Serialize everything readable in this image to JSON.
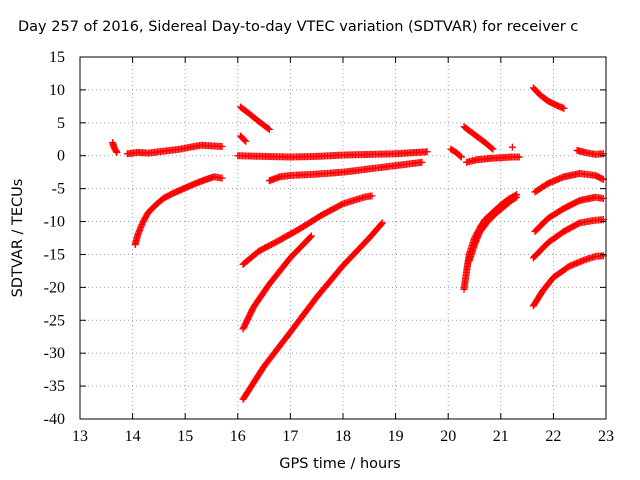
{
  "chart_data": {
    "type": "scatter",
    "title": "Day 257 of 2016, Sidereal Day-to-day VTEC variation (SDTVAR) for receiver c",
    "xlabel": "GPS time / hours",
    "ylabel": "SDTVAR / TECUs",
    "xlim": [
      13,
      23
    ],
    "ylim": [
      -40,
      15
    ],
    "x_ticks": [
      "13",
      "14",
      "15",
      "16",
      "17",
      "18",
      "19",
      "20",
      "21",
      "22",
      "23"
    ],
    "y_ticks": [
      "15",
      "10",
      "5",
      "0",
      "-5",
      "-10",
      "-15",
      "-20",
      "-25",
      "-30",
      "-35",
      "-40"
    ],
    "grid": true,
    "marker": "plus",
    "color": "#ff0000",
    "series": [
      {
        "x": [
          13.62,
          13.65,
          13.68,
          13.7
        ],
        "y": [
          2.0,
          1.2,
          0.8,
          0.5
        ]
      },
      {
        "x": [
          13.9,
          14.1,
          14.3,
          14.5,
          14.7,
          14.9,
          15.1,
          15.3,
          15.5,
          15.7
        ],
        "y": [
          0.3,
          0.5,
          0.4,
          0.6,
          0.8,
          1.0,
          1.3,
          1.6,
          1.5,
          1.4
        ]
      },
      {
        "x": [
          14.05,
          14.1,
          14.2,
          14.3,
          14.45,
          14.6,
          14.8,
          15.0,
          15.2,
          15.4,
          15.55,
          15.7
        ],
        "y": [
          -13.5,
          -12.0,
          -10.0,
          -8.6,
          -7.4,
          -6.4,
          -5.6,
          -4.9,
          -4.2,
          -3.6,
          -3.2,
          -3.4
        ]
      },
      {
        "x": [
          16.05,
          16.15
        ],
        "y": [
          3.0,
          2.2
        ]
      },
      {
        "x": [
          16.05,
          16.2,
          16.4,
          16.6
        ],
        "y": [
          7.4,
          6.5,
          5.2,
          4.0
        ]
      },
      {
        "x": [
          16.0,
          16.5,
          17.0,
          17.5,
          18.0,
          18.5,
          19.0,
          19.2,
          19.4,
          19.6
        ],
        "y": [
          0.0,
          -0.1,
          -0.2,
          -0.1,
          0.1,
          0.2,
          0.3,
          0.4,
          0.5,
          0.6
        ]
      },
      {
        "x": [
          16.6,
          16.8,
          17.0,
          17.5,
          18.0,
          18.5,
          19.0,
          19.5
        ],
        "y": [
          -3.8,
          -3.2,
          -3.0,
          -2.8,
          -2.5,
          -2.0,
          -1.5,
          -1.0
        ]
      },
      {
        "x": [
          16.1,
          16.4,
          16.8,
          17.2,
          17.6,
          18.0,
          18.4,
          18.55
        ],
        "y": [
          -16.5,
          -14.5,
          -12.8,
          -11.0,
          -9.0,
          -7.3,
          -6.3,
          -6.1
        ]
      },
      {
        "x": [
          16.1,
          16.3,
          16.6,
          17.0,
          17.4
        ],
        "y": [
          -26.3,
          -23.0,
          -19.5,
          -15.5,
          -12.2
        ]
      },
      {
        "x": [
          16.1,
          16.5,
          17.0,
          17.5,
          18.0,
          18.5,
          18.75
        ],
        "y": [
          -37.0,
          -32.0,
          -26.8,
          -21.5,
          -16.7,
          -12.5,
          -10.2
        ]
      },
      {
        "x": [
          20.05,
          20.15,
          20.25
        ],
        "y": [
          1.0,
          0.5,
          -0.2
        ]
      },
      {
        "x": [
          20.35,
          20.55,
          20.8,
          21.0,
          21.2,
          21.35
        ],
        "y": [
          -1.0,
          -0.6,
          -0.4,
          -0.3,
          -0.2,
          -0.2
        ]
      },
      {
        "x": [
          20.3,
          20.5,
          20.7,
          20.85
        ],
        "y": [
          4.4,
          3.2,
          2.0,
          1.0
        ]
      },
      {
        "x": [
          21.22
        ],
        "y": [
          1.3
        ]
      },
      {
        "x": [
          20.3,
          20.35,
          20.4,
          20.5,
          20.6,
          20.7,
          20.85,
          21.0,
          21.15,
          21.3
        ],
        "y": [
          -20.3,
          -17.5,
          -15.0,
          -12.5,
          -11.0,
          -9.7,
          -8.6,
          -7.5,
          -6.6,
          -5.9
        ]
      },
      {
        "x": [
          20.4,
          20.5,
          20.6,
          20.75,
          20.9,
          21.05,
          21.2,
          21.3
        ],
        "y": [
          -16.0,
          -13.5,
          -11.6,
          -10.0,
          -8.8,
          -7.8,
          -6.8,
          -6.3
        ]
      },
      {
        "x": [
          21.62,
          21.75,
          21.9,
          22.05,
          22.2
        ],
        "y": [
          10.3,
          9.2,
          8.3,
          7.7,
          7.2
        ]
      },
      {
        "x": [
          22.45,
          22.6,
          22.8,
          22.95
        ],
        "y": [
          0.8,
          0.5,
          0.2,
          0.3
        ]
      },
      {
        "x": [
          21.65,
          21.9,
          22.2,
          22.5,
          22.8,
          22.95
        ],
        "y": [
          -5.5,
          -4.2,
          -3.2,
          -2.7,
          -3.0,
          -3.6
        ]
      },
      {
        "x": [
          21.65,
          21.9,
          22.2,
          22.5,
          22.8,
          22.95
        ],
        "y": [
          -11.5,
          -9.5,
          -8.0,
          -6.8,
          -6.3,
          -6.5
        ]
      },
      {
        "x": [
          21.62,
          21.9,
          22.2,
          22.5,
          22.8,
          22.95
        ],
        "y": [
          -15.5,
          -13.2,
          -11.5,
          -10.2,
          -9.8,
          -9.7
        ]
      },
      {
        "x": [
          21.62,
          21.8,
          22.0,
          22.3,
          22.6,
          22.8,
          22.95
        ],
        "y": [
          -22.8,
          -20.5,
          -18.5,
          -16.8,
          -15.8,
          -15.3,
          -15.2
        ]
      }
    ]
  }
}
